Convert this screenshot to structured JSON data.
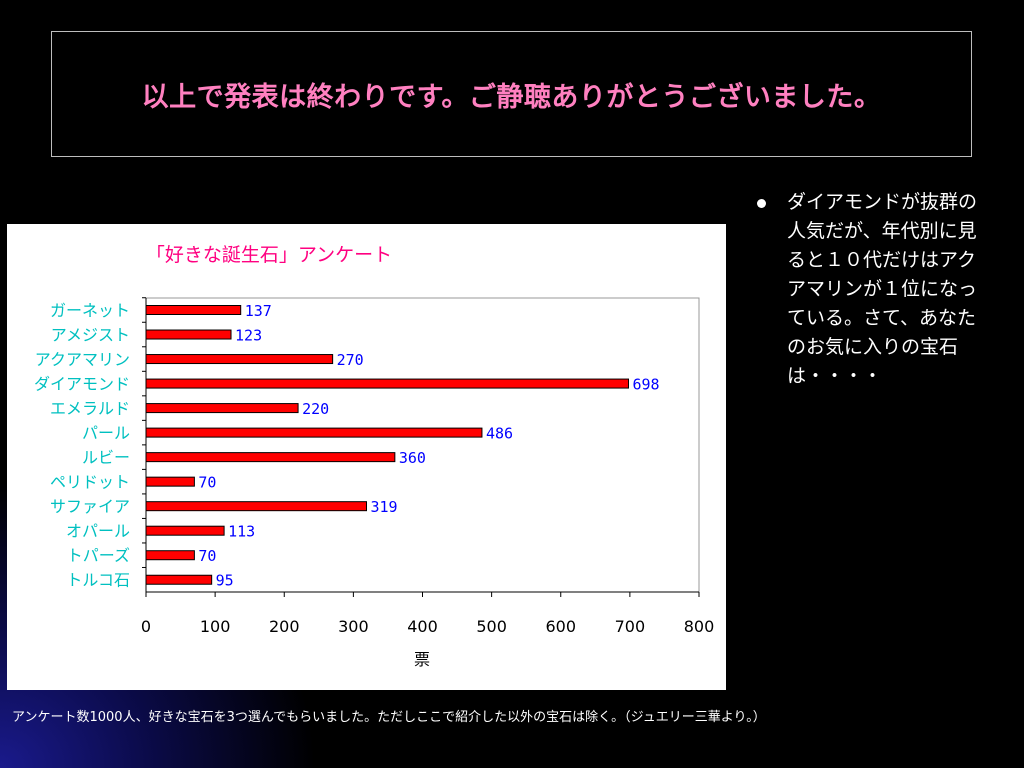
{
  "slide": {
    "title": "以上で発表は終わりです。ご静聴ありがとうございました。",
    "bullet": "ダイアモンドが抜群の人気だが、年代別に見ると１０代だけはアクアマリンが１位になっている。さて、あなたのお気に入りの宝石は・・・・",
    "footnote": "アンケート数1000人、好きな宝石を3つ選んでもらいました。ただしここで紹介した以外の宝石は除く。（ジュエリー三華より。）"
  },
  "colors": {
    "title": "#ff80c0",
    "chart_title": "#ff0080",
    "category_label": "#00c0c0",
    "value_label": "#0000ff",
    "bar": "#ff0000"
  },
  "chart_data": {
    "type": "bar",
    "orientation": "horizontal",
    "title": "「好きな誕生石」アンケート",
    "xlabel": "票",
    "ylabel": "",
    "categories": [
      "ガーネット",
      "アメジスト",
      "アクアマリン",
      "ダイアモンド",
      "エメラルド",
      "パール",
      "ルビー",
      "ペリドット",
      "サファイア",
      "オパール",
      "トパーズ",
      "トルコ石"
    ],
    "values": [
      137,
      123,
      270,
      698,
      220,
      486,
      360,
      70,
      319,
      113,
      70,
      95
    ],
    "xlim": [
      0,
      800
    ],
    "xticks": [
      0,
      100,
      200,
      300,
      400,
      500,
      600,
      700,
      800
    ],
    "grid": false,
    "legend": "none"
  }
}
